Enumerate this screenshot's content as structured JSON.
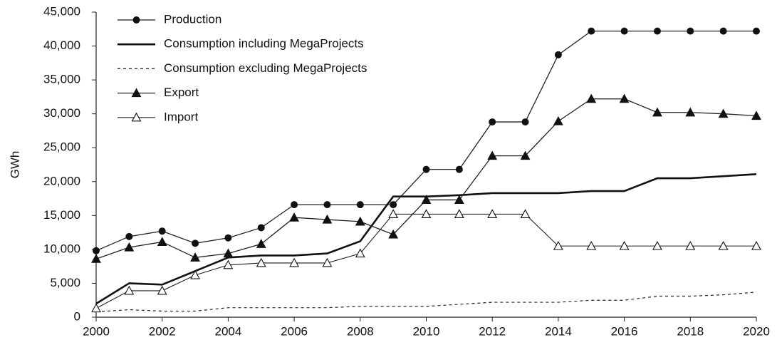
{
  "chart_data": {
    "type": "line",
    "y_label": "GWh",
    "x": [
      2000,
      2001,
      2002,
      2003,
      2004,
      2005,
      2006,
      2007,
      2008,
      2009,
      2010,
      2011,
      2012,
      2013,
      2014,
      2015,
      2016,
      2017,
      2018,
      2019,
      2020
    ],
    "xlim": [
      2000,
      2020
    ],
    "xticks": [
      2000,
      2002,
      2004,
      2006,
      2008,
      2010,
      2012,
      2014,
      2016,
      2018,
      2020
    ],
    "ylim": [
      0,
      45000
    ],
    "yticks": [
      0,
      {
        "value": 5000,
        "label": "5,000"
      },
      {
        "value": 10000,
        "label": "10,000"
      },
      {
        "value": 15000,
        "label": "15,000"
      },
      {
        "value": 20000,
        "label": "20,000"
      },
      {
        "value": 25000,
        "label": "25,000"
      },
      {
        "value": 30000,
        "label": "30,000"
      },
      {
        "value": 35000,
        "label": "35,000"
      },
      {
        "value": 40000,
        "label": "40,000"
      },
      {
        "value": 45000,
        "label": "45,000"
      }
    ],
    "grid": false,
    "legend": "upper left",
    "series": [
      {
        "name": "Production",
        "color": "#222222",
        "marker": "circle",
        "dash": "solid",
        "width": 1.3,
        "values": [
          9800,
          11900,
          12700,
          10900,
          11700,
          13200,
          16600,
          16600,
          16600,
          16600,
          21800,
          21800,
          28800,
          28800,
          38700,
          42200,
          42200,
          42200,
          42200,
          42200,
          42200
        ]
      },
      {
        "name": "Consumption including MegaProjects",
        "color": "#111111",
        "marker": "none",
        "dash": "solid",
        "width": 2.6,
        "values": [
          2000,
          5000,
          4800,
          6800,
          8800,
          9100,
          9100,
          9400,
          11200,
          17800,
          17800,
          18000,
          18300,
          18300,
          18300,
          18600,
          18600,
          20500,
          20500,
          20800,
          21100
        ]
      },
      {
        "name": "Consumption excluding MegaProjects",
        "color": "#222222",
        "marker": "none",
        "dash": "dashed",
        "width": 1.2,
        "values": [
          800,
          1100,
          900,
          900,
          1400,
          1400,
          1400,
          1400,
          1600,
          1600,
          1600,
          1900,
          2200,
          2200,
          2200,
          2500,
          2500,
          3100,
          3100,
          3300,
          3700
        ]
      },
      {
        "name": "Export",
        "color": "#222222",
        "marker": "triangle",
        "dash": "solid",
        "width": 1.3,
        "values": [
          8600,
          10300,
          11100,
          8800,
          9400,
          10800,
          14700,
          14400,
          14100,
          12200,
          17300,
          17300,
          23800,
          23800,
          28900,
          32200,
          32200,
          30200,
          30200,
          30000,
          29700
        ]
      },
      {
        "name": "Import",
        "color": "#222222",
        "marker": "open-triangle",
        "dash": "solid",
        "width": 1.1,
        "values": [
          1300,
          3900,
          3900,
          6200,
          7700,
          8000,
          8000,
          8000,
          9400,
          15200,
          15200,
          15200,
          15200,
          15200,
          10500,
          10500,
          10500,
          10500,
          10500,
          10500,
          10500
        ]
      }
    ]
  }
}
